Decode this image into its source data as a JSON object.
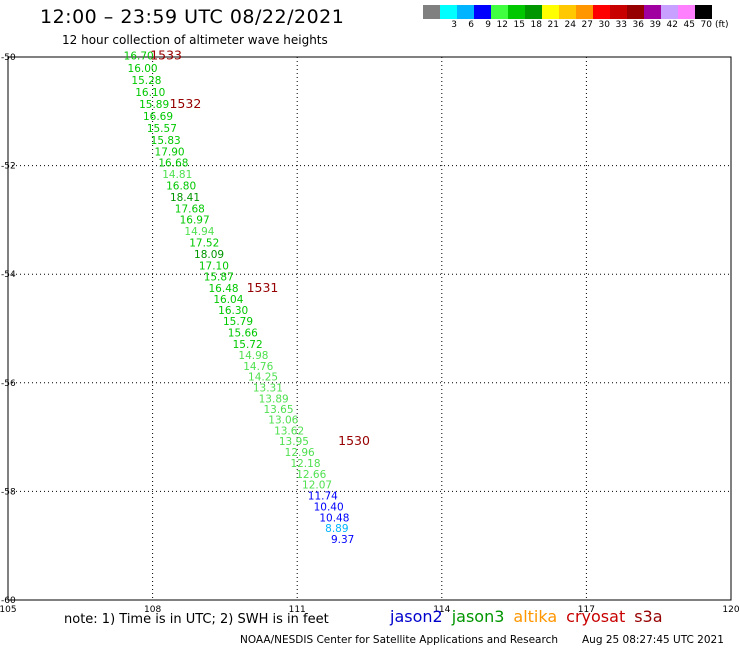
{
  "header": {
    "title": "12:00 – 23:59 UTC 08/22/2021",
    "subtitle": "12 hour collection of altimeter wave heights"
  },
  "colorbar": {
    "colors": [
      "#808080",
      "#00ffff",
      "#00b4ff",
      "#0000ff",
      "#40ff40",
      "#00c800",
      "#009600",
      "#ffff00",
      "#ffc800",
      "#ff9600",
      "#ff0000",
      "#c80000",
      "#960000",
      "#a000a0",
      "#c8a0ff",
      "#ff80ff",
      "#000000"
    ],
    "labels": [
      "3",
      "6",
      "9",
      "12",
      "15",
      "18",
      "21",
      "24",
      "27",
      "30",
      "33",
      "36",
      "39",
      "42",
      "45",
      "70"
    ],
    "unit": "(ft)"
  },
  "chart_data": {
    "type": "scatter",
    "title": "12:00 – 23:59 UTC 08/22/2021",
    "subtitle": "12 hour collection of altimeter wave heights",
    "xlabel": "",
    "ylabel": "",
    "xlim": [
      105,
      120
    ],
    "ylim": [
      -60,
      -50
    ],
    "x_ticks": [
      "105",
      "108",
      "111",
      "114",
      "117",
      "120"
    ],
    "y_ticks": [
      "-50",
      "-52",
      "-54",
      "-56",
      "-58",
      "-60"
    ],
    "grid": true,
    "unit": "ft",
    "series": [
      {
        "name": "jason3",
        "points": [
          {
            "lon": 107.4,
            "lat": -50.05,
            "swh": "16.70"
          },
          {
            "lon": 107.48,
            "lat": -50.28,
            "swh": "16.00"
          },
          {
            "lon": 107.56,
            "lat": -50.5,
            "swh": "15.28"
          },
          {
            "lon": 107.64,
            "lat": -50.72,
            "swh": "16.10"
          },
          {
            "lon": 107.72,
            "lat": -50.94,
            "swh": "15.89"
          },
          {
            "lon": 107.8,
            "lat": -51.16,
            "swh": "16.69"
          },
          {
            "lon": 107.88,
            "lat": -51.38,
            "swh": "15.57"
          },
          {
            "lon": 107.96,
            "lat": -51.6,
            "swh": "15.83"
          },
          {
            "lon": 108.04,
            "lat": -51.81,
            "swh": "17.90"
          },
          {
            "lon": 108.12,
            "lat": -52.02,
            "swh": "16.68"
          },
          {
            "lon": 108.2,
            "lat": -52.23,
            "swh": "14.81"
          },
          {
            "lon": 108.28,
            "lat": -52.44,
            "swh": "16.80"
          },
          {
            "lon": 108.36,
            "lat": -52.65,
            "swh": "18.41"
          },
          {
            "lon": 108.46,
            "lat": -52.86,
            "swh": "17.68"
          },
          {
            "lon": 108.56,
            "lat": -53.07,
            "swh": "16.97"
          },
          {
            "lon": 108.66,
            "lat": -53.28,
            "swh": "14.94"
          },
          {
            "lon": 108.76,
            "lat": -53.49,
            "swh": "17.52"
          },
          {
            "lon": 108.86,
            "lat": -53.7,
            "swh": "18.09"
          },
          {
            "lon": 108.96,
            "lat": -53.91,
            "swh": "17.10"
          },
          {
            "lon": 109.06,
            "lat": -54.12,
            "swh": "15.87"
          },
          {
            "lon": 109.16,
            "lat": -54.33,
            "swh": "16.48"
          },
          {
            "lon": 109.26,
            "lat": -54.53,
            "swh": "16.04"
          },
          {
            "lon": 109.36,
            "lat": -54.73,
            "swh": "16.30"
          },
          {
            "lon": 109.46,
            "lat": -54.94,
            "swh": "15.79"
          },
          {
            "lon": 109.56,
            "lat": -55.15,
            "swh": "15.66"
          },
          {
            "lon": 109.66,
            "lat": -55.36,
            "swh": "15.72"
          },
          {
            "lon": 109.78,
            "lat": -55.56,
            "swh": "14.98"
          },
          {
            "lon": 109.88,
            "lat": -55.76,
            "swh": "14.76"
          },
          {
            "lon": 109.98,
            "lat": -55.96,
            "swh": "14.25"
          },
          {
            "lon": 110.08,
            "lat": -56.16,
            "swh": "13.31"
          },
          {
            "lon": 110.2,
            "lat": -56.36,
            "swh": "13.89"
          },
          {
            "lon": 110.3,
            "lat": -56.56,
            "swh": "13.65"
          },
          {
            "lon": 110.4,
            "lat": -56.75,
            "swh": "13.06"
          },
          {
            "lon": 110.52,
            "lat": -56.95,
            "swh": "13.62"
          },
          {
            "lon": 110.62,
            "lat": -57.15,
            "swh": "13.95"
          },
          {
            "lon": 110.74,
            "lat": -57.35,
            "swh": "12.96"
          },
          {
            "lon": 110.86,
            "lat": -57.55,
            "swh": "12.18"
          },
          {
            "lon": 110.98,
            "lat": -57.75,
            "swh": "12.66"
          },
          {
            "lon": 111.1,
            "lat": -57.95,
            "swh": "12.07"
          },
          {
            "lon": 111.22,
            "lat": -58.15,
            "swh": "11.74"
          },
          {
            "lon": 111.34,
            "lat": -58.35,
            "swh": "10.40"
          },
          {
            "lon": 111.46,
            "lat": -58.55,
            "swh": "10.48"
          },
          {
            "lon": 111.58,
            "lat": -58.75,
            "swh": "8.89"
          },
          {
            "lon": 111.7,
            "lat": -58.95,
            "swh": "9.37"
          }
        ]
      }
    ],
    "track_labels": [
      {
        "text": "1533",
        "lon": 107.95,
        "lat": -50.05
      },
      {
        "text": "1532",
        "lon": 108.35,
        "lat": -50.94
      },
      {
        "text": "1531",
        "lon": 109.95,
        "lat": -54.33
      },
      {
        "text": "1530",
        "lon": 111.85,
        "lat": -57.15
      }
    ]
  },
  "footer": {
    "note": "note:  1) Time is in UTC;  2) SWH is in feet",
    "missions": [
      {
        "name": "jason2",
        "color": "#0000cc"
      },
      {
        "name": "jason3",
        "color": "#009600"
      },
      {
        "name": "altika",
        "color": "#ff9600"
      },
      {
        "name": "cryosat",
        "color": "#c80000"
      },
      {
        "name": "s3a",
        "color": "#960000"
      }
    ],
    "credit": "NOAA/NESDIS Center for Satellite Applications and Research",
    "timestamp": "Aug 25 08:27:45 UTC 2021"
  }
}
